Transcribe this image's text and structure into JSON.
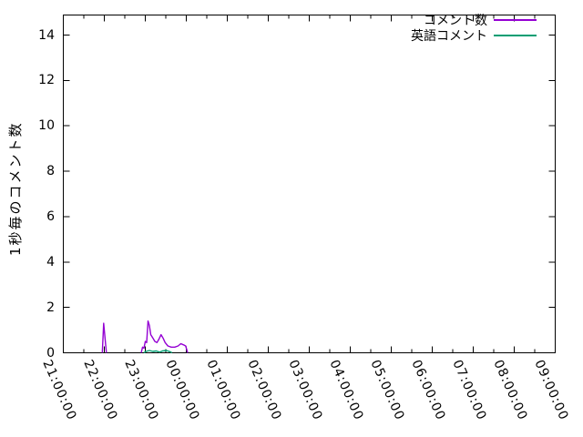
{
  "window": {
    "background": "#ffffff",
    "border_color": "#000000"
  },
  "chart_data": {
    "type": "line",
    "title": "",
    "xlabel": "",
    "ylabel": "1秒毎のコメント数",
    "ylim": [
      0,
      14
    ],
    "ytick_step": 2,
    "ytick_labels": [
      "0",
      "2",
      "4",
      "6",
      "8",
      "10",
      "12",
      "14"
    ],
    "xtick_labels": [
      "21:00:00",
      "22:00:00",
      "23:00:00",
      "00:00:00",
      "01:00:00",
      "02:00:00",
      "03:00:00",
      "04:00:00",
      "05:00:00",
      "06:00:00",
      "07:00:00",
      "08:00:00",
      "09:00:00"
    ],
    "x_minor_ticks_between_majors": 1,
    "grid": false,
    "legend_position": "top-right-inside",
    "axis_color": "#000000",
    "series": [
      {
        "name": "コメント数",
        "color": "#9400d3",
        "segments": [
          [
            [
              "21:57",
              0
            ],
            [
              "21:59",
              1.3
            ],
            [
              "22:03",
              0
            ]
          ],
          [
            [
              "22:54",
              0
            ],
            [
              "22:56",
              0.25
            ],
            [
              "22:58",
              0.2
            ],
            [
              "23:00",
              0.5
            ],
            [
              "23:02",
              0.45
            ],
            [
              "23:04",
              1.4
            ],
            [
              "23:06",
              1.2
            ],
            [
              "23:08",
              0.8
            ],
            [
              "23:11",
              0.65
            ],
            [
              "23:14",
              0.5
            ],
            [
              "23:17",
              0.45
            ],
            [
              "23:20",
              0.6
            ],
            [
              "23:23",
              0.8
            ],
            [
              "23:26",
              0.65
            ],
            [
              "23:29",
              0.45
            ],
            [
              "23:33",
              0.3
            ],
            [
              "23:38",
              0.25
            ],
            [
              "23:43",
              0.25
            ],
            [
              "23:48",
              0.3
            ],
            [
              "23:52",
              0.4
            ],
            [
              "23:56",
              0.35
            ],
            [
              "23:59",
              0.3
            ],
            [
              "00:01",
              0.1
            ],
            [
              "00:02",
              0
            ]
          ]
        ]
      },
      {
        "name": "英語コメント",
        "color": "#009e73",
        "segments": [
          [
            [
              "22:58",
              0
            ],
            [
              "23:01",
              0.06
            ],
            [
              "23:06",
              0.1
            ],
            [
              "23:11",
              0.06
            ],
            [
              "23:16",
              0.08
            ],
            [
              "23:21",
              0.03
            ],
            [
              "23:25",
              0.08
            ],
            [
              "23:31",
              0.1
            ],
            [
              "23:36",
              0.05
            ],
            [
              "23:39",
              0
            ]
          ]
        ]
      }
    ]
  }
}
